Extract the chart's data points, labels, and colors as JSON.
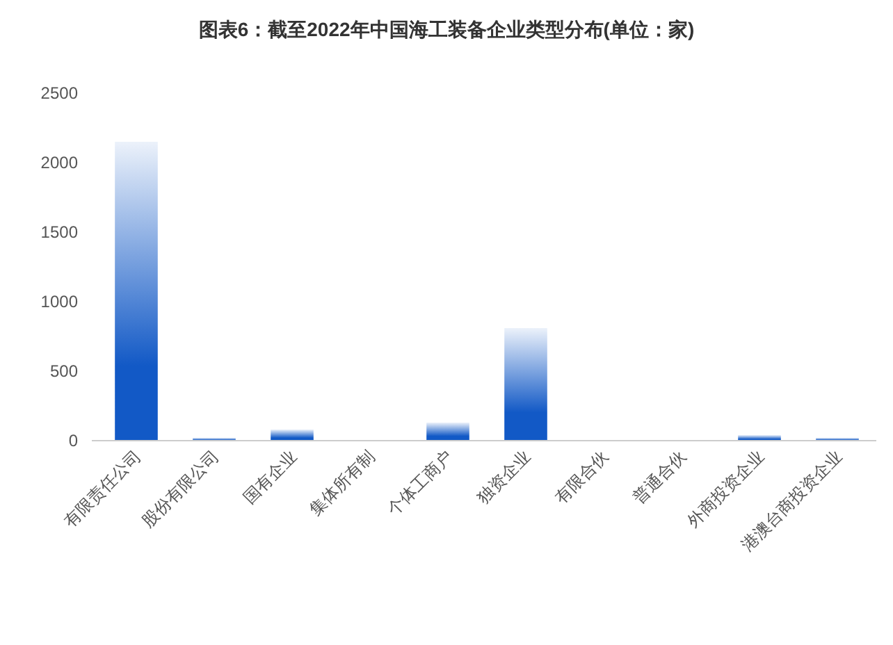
{
  "chart_data": {
    "type": "bar",
    "title": "图表6：截至2022年中国海工装备企业类型分布(单位：家)",
    "categories": [
      "有限责任公司",
      "股份有限公司",
      "国有企业",
      "集体所有制",
      "个体工商户",
      "独资企业",
      "有限合伙",
      "普通合伙",
      "外商投资企业",
      "港澳台商投资企业"
    ],
    "values": [
      2150,
      20,
      80,
      0,
      130,
      810,
      0,
      0,
      40,
      20
    ],
    "color": "#1259c6",
    "ylim": [
      0,
      2500
    ],
    "yticks": [
      0,
      500,
      1000,
      1500,
      2000,
      2500
    ],
    "grid": false
  }
}
